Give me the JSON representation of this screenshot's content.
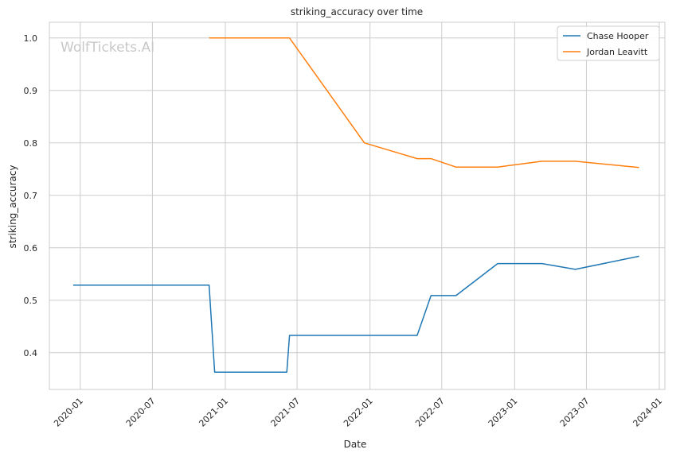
{
  "chart_data": {
    "type": "line",
    "title": "striking_accuracy over time",
    "xlabel": "Date",
    "ylabel": "striking_accuracy",
    "watermark": "WolfTickets.AI",
    "x_ticks": [
      "2020-01",
      "2020-07",
      "2021-01",
      "2021-07",
      "2022-01",
      "2022-07",
      "2023-01",
      "2023-07",
      "2024-01"
    ],
    "y_ticks": [
      "0.4",
      "0.5",
      "0.6",
      "0.7",
      "0.8",
      "0.9",
      "1.0"
    ],
    "xlim": [
      "2019-10-15",
      "2024-01-15"
    ],
    "ylim": [
      0.33,
      1.03
    ],
    "grid": true,
    "legend_position": "top-right",
    "series": [
      {
        "name": "Chase Hooper",
        "color": "#1f77b4",
        "points": [
          {
            "x": "2019-12-14",
            "y": 0.529
          },
          {
            "x": "2020-11-21",
            "y": 0.529
          },
          {
            "x": "2020-12-05",
            "y": 0.363
          },
          {
            "x": "2021-06-05",
            "y": 0.363
          },
          {
            "x": "2021-06-12",
            "y": 0.433
          },
          {
            "x": "2022-04-30",
            "y": 0.433
          },
          {
            "x": "2022-06-04",
            "y": 0.509
          },
          {
            "x": "2022-08-06",
            "y": 0.509
          },
          {
            "x": "2022-11-19",
            "y": 0.57
          },
          {
            "x": "2023-03-11",
            "y": 0.57
          },
          {
            "x": "2023-06-03",
            "y": 0.559
          },
          {
            "x": "2023-11-11",
            "y": 0.584
          }
        ]
      },
      {
        "name": "Jordan Leavitt",
        "color": "#ff7f0e",
        "points": [
          {
            "x": "2020-11-21",
            "y": 1.0
          },
          {
            "x": "2021-06-12",
            "y": 1.0
          },
          {
            "x": "2021-12-18",
            "y": 0.8
          },
          {
            "x": "2022-04-30",
            "y": 0.77
          },
          {
            "x": "2022-06-04",
            "y": 0.77
          },
          {
            "x": "2022-08-06",
            "y": 0.754
          },
          {
            "x": "2022-11-19",
            "y": 0.754
          },
          {
            "x": "2023-03-11",
            "y": 0.765
          },
          {
            "x": "2023-06-03",
            "y": 0.765
          },
          {
            "x": "2023-11-11",
            "y": 0.753
          }
        ]
      }
    ]
  }
}
